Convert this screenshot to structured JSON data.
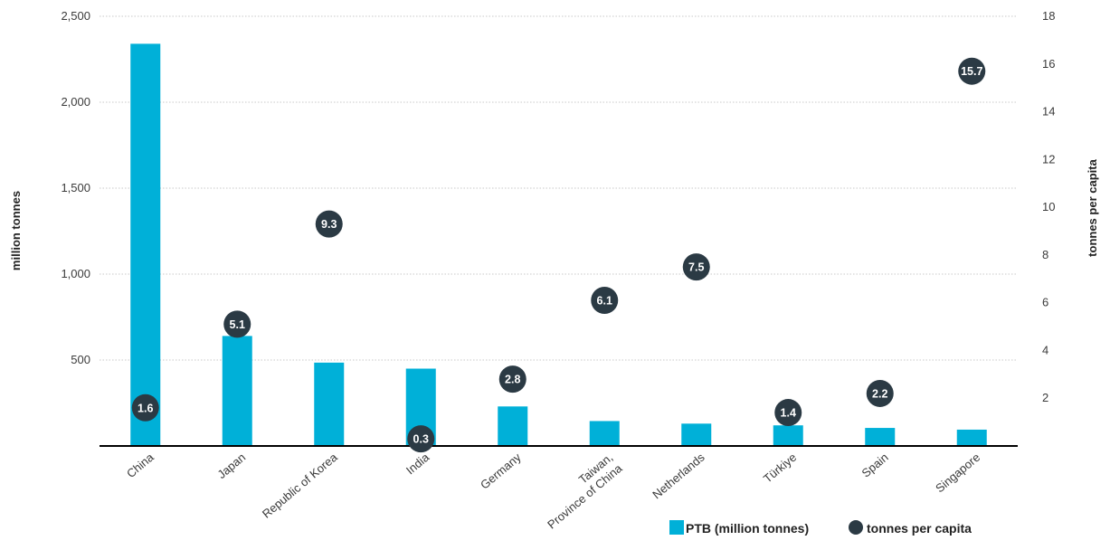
{
  "chart_data": {
    "type": "bar",
    "categories": [
      "China",
      "Japan",
      "Republic of Korea",
      "India",
      "Germany",
      "Taiwan,|Province of China",
      "Netherlands",
      "Türkiye",
      "Spain",
      "Singapore"
    ],
    "series": [
      {
        "name": "PTB (million tonnes)",
        "axis": "left",
        "mark": "bar",
        "color": "#00b0d8",
        "values": [
          2340,
          640,
          485,
          450,
          230,
          145,
          130,
          120,
          105,
          95
        ]
      },
      {
        "name": "tonnes per capita",
        "axis": "right",
        "mark": "dot",
        "color": "#2b3a44",
        "values": [
          1.6,
          5.1,
          9.3,
          0.3,
          2.8,
          6.1,
          7.5,
          1.4,
          2.2,
          15.7
        ],
        "labels": [
          "1.6",
          "5.1",
          "9.3",
          "0.3",
          "2.8",
          "6.1",
          "7.5",
          "1.4",
          "2.2",
          "15.7"
        ]
      }
    ],
    "ylabel": "million tonnes",
    "y2label": "tonnes per capita",
    "ylim": [
      0,
      2500
    ],
    "y2lim": [
      0,
      18
    ],
    "yticks": [
      500,
      1000,
      1500,
      2000,
      2500
    ],
    "yticklabels": [
      "500",
      "1,000",
      "1,500",
      "2,000",
      "2,500"
    ],
    "y2ticks": [
      2,
      4,
      6,
      8,
      10,
      12,
      14,
      16,
      18
    ],
    "y2ticklabels": [
      "2",
      "4",
      "6",
      "8",
      "10",
      "12",
      "14",
      "16",
      "18"
    ],
    "grid": true,
    "legend_position": "bottom-right"
  }
}
